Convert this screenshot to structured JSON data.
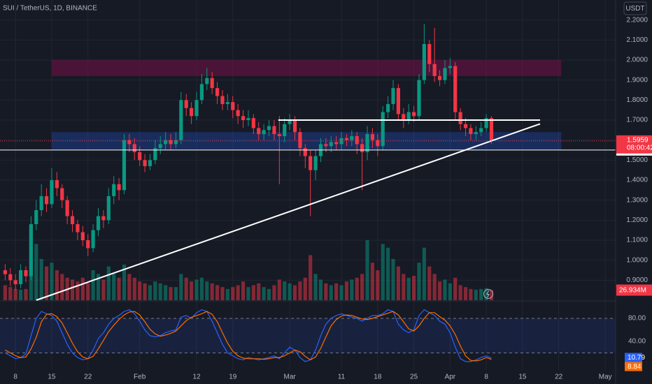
{
  "chart_data": {
    "type": "candlestick",
    "title": "SUI / TetherUS, 1D, BINANCE",
    "currency": "USDT",
    "countdown": "08:00:42",
    "colors": {
      "up": "#089981",
      "down": "#f23645"
    },
    "xlim": [
      -1,
      118
    ],
    "xticks": [
      {
        "value": 2,
        "label": "8"
      },
      {
        "value": 9,
        "label": "15"
      },
      {
        "value": 16,
        "label": "22"
      },
      {
        "value": 26,
        "label": "Feb"
      },
      {
        "value": 37,
        "label": "12"
      },
      {
        "value": 44,
        "label": "19"
      },
      {
        "value": 55,
        "label": "Mar"
      },
      {
        "value": 65,
        "label": "11"
      },
      {
        "value": 72,
        "label": "18"
      },
      {
        "value": 79,
        "label": "25"
      },
      {
        "value": 86,
        "label": "Apr"
      },
      {
        "value": 93,
        "label": "8"
      },
      {
        "value": 100,
        "label": "15"
      },
      {
        "value": 107,
        "label": "22"
      },
      {
        "value": 116,
        "label": "May"
      }
    ],
    "ylim": [
      0.8,
      2.3
    ],
    "yticks": [
      {
        "value": 0.9,
        "label": "0.9000"
      },
      {
        "value": 1.0,
        "label": "1.0000"
      },
      {
        "value": 1.1,
        "label": "1.1000"
      },
      {
        "value": 1.2,
        "label": "1.2000"
      },
      {
        "value": 1.3,
        "label": "1.3000"
      },
      {
        "value": 1.4,
        "label": "1.4000"
      },
      {
        "value": 1.5,
        "label": "1.5000"
      },
      {
        "value": 1.6,
        "label": "1.6000"
      },
      {
        "value": 1.7,
        "label": "1.7000"
      },
      {
        "value": 1.8,
        "label": "1.8000"
      },
      {
        "value": 1.9,
        "label": "1.9000"
      },
      {
        "value": 2.0,
        "label": "2.0000"
      },
      {
        "value": 2.1,
        "label": "2.1000"
      },
      {
        "value": 2.2,
        "label": "2.2000"
      }
    ],
    "open": [
      0.95,
      0.93,
      0.9,
      0.88,
      0.95,
      0.92,
      1.18,
      1.25,
      1.32,
      1.28,
      1.4,
      1.36,
      1.3,
      1.22,
      1.18,
      1.14,
      1.1,
      1.06,
      1.15,
      1.22,
      1.2,
      1.32,
      1.38,
      1.35,
      1.6,
      1.58,
      1.54,
      1.5,
      1.47,
      1.5,
      1.56,
      1.58,
      1.6,
      1.58,
      1.6,
      1.8,
      1.76,
      1.72,
      1.8,
      1.88,
      1.91,
      1.86,
      1.82,
      1.78,
      1.79,
      1.75,
      1.72,
      1.7,
      1.71,
      1.66,
      1.63,
      1.65,
      1.67,
      1.63,
      1.62,
      1.68,
      1.7,
      1.64,
      1.56,
      1.52,
      1.45,
      1.52,
      1.58,
      1.57,
      1.59,
      1.58,
      1.61,
      1.6,
      1.62,
      1.58,
      1.54,
      1.63,
      1.6,
      1.57,
      1.74,
      1.78,
      1.86,
      1.73,
      1.7,
      1.74,
      1.72,
      1.9,
      2.08,
      1.98,
      1.92,
      1.9,
      1.96,
      1.97,
      1.74,
      1.68,
      1.66,
      1.63,
      1.64,
      1.66,
      1.71
    ],
    "high": [
      0.98,
      0.96,
      0.93,
      0.98,
      0.97,
      1.22,
      1.3,
      1.38,
      1.36,
      1.46,
      1.44,
      1.38,
      1.32,
      1.25,
      1.2,
      1.17,
      1.13,
      1.18,
      1.26,
      1.25,
      1.36,
      1.42,
      1.41,
      1.63,
      1.63,
      1.61,
      1.57,
      1.53,
      1.53,
      1.6,
      1.62,
      1.64,
      1.63,
      1.64,
      1.84,
      1.83,
      1.79,
      1.84,
      1.93,
      1.96,
      1.94,
      1.89,
      1.85,
      1.83,
      1.82,
      1.78,
      1.75,
      1.75,
      1.73,
      1.69,
      1.68,
      1.7,
      1.7,
      1.72,
      1.71,
      1.73,
      1.72,
      1.66,
      1.58,
      1.55,
      1.55,
      1.61,
      1.61,
      1.62,
      1.62,
      1.64,
      1.63,
      1.65,
      1.64,
      1.61,
      1.67,
      1.66,
      1.63,
      1.77,
      1.82,
      1.9,
      1.88,
      1.76,
      1.78,
      1.77,
      1.93,
      2.18,
      2.1,
      2.16,
      1.95,
      2.0,
      2.01,
      1.99,
      1.76,
      1.71,
      1.68,
      1.67,
      1.69,
      1.73,
      1.72
    ],
    "low": [
      0.9,
      0.87,
      0.85,
      0.86,
      0.89,
      0.9,
      1.15,
      1.22,
      1.24,
      1.26,
      1.32,
      1.26,
      1.18,
      1.14,
      1.1,
      1.07,
      1.02,
      1.04,
      1.12,
      1.16,
      1.18,
      1.28,
      1.3,
      1.33,
      1.54,
      1.5,
      1.47,
      1.44,
      1.45,
      1.48,
      1.53,
      1.55,
      1.55,
      1.56,
      1.58,
      1.72,
      1.68,
      1.7,
      1.78,
      1.85,
      1.83,
      1.78,
      1.75,
      1.75,
      1.71,
      1.68,
      1.66,
      1.67,
      1.63,
      1.6,
      1.6,
      1.62,
      1.6,
      1.38,
      1.59,
      1.65,
      1.6,
      1.52,
      1.46,
      1.22,
      1.4,
      1.49,
      1.54,
      1.54,
      1.55,
      1.55,
      1.57,
      1.57,
      1.53,
      1.35,
      1.5,
      1.56,
      1.52,
      1.55,
      1.71,
      1.75,
      1.7,
      1.66,
      1.68,
      1.69,
      1.7,
      1.88,
      1.94,
      1.89,
      1.87,
      1.88,
      1.93,
      1.7,
      1.65,
      1.62,
      1.6,
      1.6,
      1.62,
      1.64,
      1.58
    ],
    "close": [
      0.93,
      0.9,
      0.88,
      0.95,
      0.92,
      1.18,
      1.25,
      1.32,
      1.28,
      1.4,
      1.36,
      1.3,
      1.22,
      1.18,
      1.14,
      1.1,
      1.06,
      1.15,
      1.22,
      1.2,
      1.32,
      1.38,
      1.35,
      1.6,
      1.58,
      1.54,
      1.5,
      1.47,
      1.5,
      1.56,
      1.58,
      1.6,
      1.58,
      1.6,
      1.8,
      1.76,
      1.72,
      1.8,
      1.88,
      1.91,
      1.86,
      1.82,
      1.78,
      1.79,
      1.75,
      1.72,
      1.7,
      1.71,
      1.66,
      1.63,
      1.65,
      1.67,
      1.63,
      1.62,
      1.68,
      1.7,
      1.64,
      1.56,
      1.52,
      1.45,
      1.52,
      1.58,
      1.57,
      1.59,
      1.58,
      1.61,
      1.6,
      1.62,
      1.58,
      1.54,
      1.63,
      1.6,
      1.57,
      1.74,
      1.78,
      1.86,
      1.73,
      1.7,
      1.74,
      1.72,
      1.9,
      2.08,
      1.98,
      1.92,
      1.9,
      1.96,
      1.97,
      1.74,
      1.68,
      1.66,
      1.63,
      1.64,
      1.66,
      1.71,
      1.5959
    ],
    "volume": {
      "ylim": [
        0,
        800
      ],
      "values": [
        40,
        35,
        30,
        28,
        30,
        190,
        150,
        110,
        90,
        100,
        80,
        70,
        60,
        55,
        50,
        60,
        45,
        80,
        70,
        55,
        90,
        70,
        60,
        95,
        70,
        60,
        50,
        45,
        40,
        50,
        45,
        40,
        35,
        35,
        70,
        60,
        50,
        55,
        60,
        50,
        45,
        40,
        35,
        30,
        35,
        40,
        50,
        35,
        40,
        45,
        35,
        30,
        40,
        55,
        50,
        45,
        40,
        50,
        60,
        120,
        70,
        55,
        45,
        40,
        45,
        40,
        50,
        55,
        60,
        70,
        160,
        100,
        80,
        150,
        140,
        110,
        90,
        70,
        60,
        65,
        100,
        140,
        90,
        70,
        50,
        55,
        45,
        60,
        40,
        35,
        30,
        28,
        30,
        32,
        26.934
      ],
      "last_label": "26.934M"
    },
    "hline": 1.5505,
    "zones": [
      {
        "x": [
          9,
          107.5
        ],
        "y": [
          1.92,
          2.0
        ],
        "color": "rgba(136,14,79,0.45)"
      },
      {
        "x": [
          9,
          107.5
        ],
        "y": [
          1.55,
          1.64
        ],
        "color": "rgba(41,98,255,0.25)"
      }
    ],
    "lines": [
      {
        "x": [
          6,
          103.4
        ],
        "y": [
          0.8,
          1.681
        ]
      },
      {
        "x": [
          52.8,
          103.4
        ],
        "y": [
          1.7,
          1.7
        ]
      }
    ],
    "stoch": {
      "ylim": [
        0,
        100
      ],
      "yticks": [
        {
          "value": 80,
          "label": "80.00"
        },
        {
          "value": 40,
          "label": "40.00"
        }
      ],
      "band": [
        20,
        80
      ],
      "series": [
        {
          "color": "#2962ff",
          "values": [
            20,
            15,
            10,
            12,
            18,
            50,
            80,
            92,
            88,
            85,
            75,
            55,
            35,
            20,
            12,
            8,
            10,
            25,
            45,
            55,
            70,
            80,
            85,
            92,
            95,
            88,
            75,
            60,
            50,
            48,
            50,
            55,
            58,
            60,
            82,
            85,
            80,
            90,
            95,
            92,
            75,
            55,
            35,
            20,
            15,
            10,
            8,
            12,
            10,
            8,
            10,
            12,
            15,
            10,
            20,
            30,
            25,
            12,
            5,
            8,
            25,
            50,
            70,
            80,
            85,
            88,
            85,
            82,
            80,
            75,
            80,
            85,
            85,
            88,
            95,
            92,
            70,
            60,
            55,
            60,
            85,
            95,
            90,
            85,
            75,
            70,
            55,
            30,
            10,
            5,
            5,
            8,
            12,
            15,
            10.79
          ]
        },
        {
          "color": "#ff6d00",
          "values": [
            25,
            20,
            15,
            12,
            13,
            27,
            47,
            74,
            87,
            88,
            83,
            72,
            55,
            37,
            22,
            13,
            10,
            14,
            27,
            42,
            57,
            68,
            78,
            86,
            91,
            92,
            86,
            74,
            61,
            53,
            49,
            51,
            54,
            58,
            67,
            76,
            82,
            85,
            88,
            92,
            87,
            74,
            55,
            37,
            23,
            15,
            11,
            10,
            10,
            10,
            9,
            10,
            12,
            12,
            15,
            20,
            25,
            22,
            14,
            8,
            13,
            28,
            48,
            67,
            78,
            84,
            86,
            85,
            82,
            79,
            78,
            80,
            83,
            86,
            89,
            92,
            86,
            74,
            62,
            58,
            67,
            80,
            90,
            90,
            83,
            77,
            67,
            52,
            32,
            15,
            7,
            6,
            8,
            12,
            8.84
          ]
        }
      ]
    }
  }
}
